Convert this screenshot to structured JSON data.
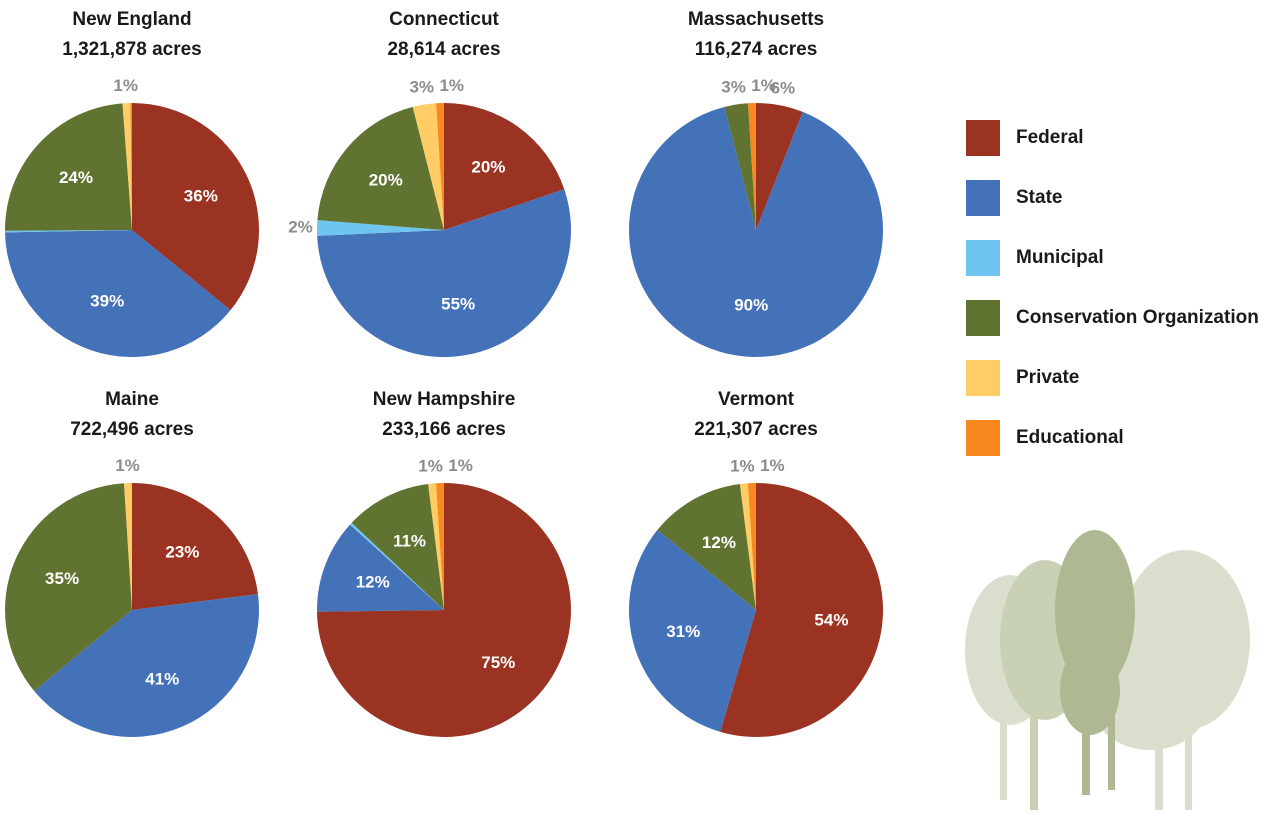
{
  "chart_data": [
    {
      "type": "pie",
      "title": "New England",
      "subtitle": "1,321,878 acres",
      "categories": [
        "Federal",
        "State",
        "Municipal",
        "Conservation Organization",
        "Private",
        "Educational"
      ],
      "colors": [
        "#9a3322",
        "#4472b9",
        "#6ec6f0",
        "#617330",
        "#ffcc66",
        "#f7891e"
      ],
      "values": [
        36,
        39,
        0.2,
        24,
        1,
        0.2
      ],
      "value_labels": [
        "36%",
        "39%",
        null,
        "24%",
        "1%",
        null
      ]
    },
    {
      "type": "pie",
      "title": "Connecticut",
      "subtitle": "28,614 acres",
      "categories": [
        "Federal",
        "State",
        "Municipal",
        "Conservation Organization",
        "Private",
        "Educational"
      ],
      "colors": [
        "#9a3322",
        "#4472b9",
        "#6ec6f0",
        "#617330",
        "#ffcc66",
        "#f7891e"
      ],
      "values": [
        20,
        55,
        2,
        20,
        3,
        1
      ],
      "value_labels": [
        "20%",
        "55%",
        "2%",
        "20%",
        "3%",
        "1%"
      ]
    },
    {
      "type": "pie",
      "title": "Massachusetts",
      "subtitle": "116,274 acres",
      "categories": [
        "Federal",
        "State",
        "Municipal",
        "Conservation Organization",
        "Private",
        "Educational"
      ],
      "colors": [
        "#9a3322",
        "#4472b9",
        "#6ec6f0",
        "#617330",
        "#ffcc66",
        "#f7891e"
      ],
      "values": [
        6,
        90,
        0,
        3,
        0,
        1
      ],
      "value_labels": [
        "6%",
        "90%",
        null,
        "3%",
        null,
        "1%"
      ]
    },
    {
      "type": "pie",
      "title": "Maine",
      "subtitle": "722,496 acres",
      "categories": [
        "Federal",
        "State",
        "Municipal",
        "Conservation Organization",
        "Private",
        "Educational"
      ],
      "colors": [
        "#9a3322",
        "#4472b9",
        "#6ec6f0",
        "#617330",
        "#ffcc66",
        "#f7891e"
      ],
      "values": [
        23,
        41,
        0,
        35,
        1,
        0
      ],
      "value_labels": [
        "23%",
        "41%",
        null,
        "35%",
        "1%",
        null
      ]
    },
    {
      "type": "pie",
      "title": "New Hampshire",
      "subtitle": "233,166 acres",
      "categories": [
        "Federal",
        "State",
        "Municipal",
        "Conservation Organization",
        "Private",
        "Educational"
      ],
      "colors": [
        "#9a3322",
        "#4472b9",
        "#6ec6f0",
        "#617330",
        "#ffcc66",
        "#f7891e"
      ],
      "values": [
        75,
        12,
        0.3,
        11,
        1,
        1
      ],
      "value_labels": [
        "75%",
        "12%",
        null,
        "11%",
        "1%",
        "1%"
      ]
    },
    {
      "type": "pie",
      "title": "Vermont",
      "subtitle": "221,307 acres",
      "categories": [
        "Federal",
        "State",
        "Municipal",
        "Conservation Organization",
        "Private",
        "Educational"
      ],
      "colors": [
        "#9a3322",
        "#4472b9",
        "#6ec6f0",
        "#617330",
        "#ffcc66",
        "#f7891e"
      ],
      "values": [
        54,
        31,
        0,
        12,
        1,
        1
      ],
      "value_labels": [
        "54%",
        "31%",
        null,
        "12%",
        "1%",
        "1%"
      ]
    }
  ]
}
